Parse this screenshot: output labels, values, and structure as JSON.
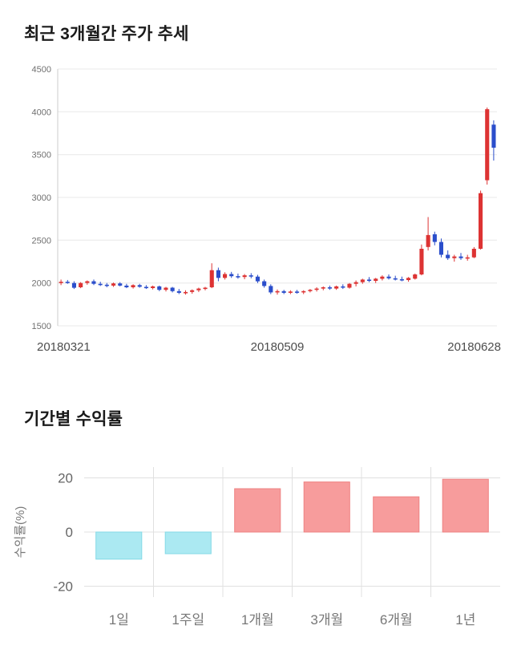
{
  "price_section": {
    "title": "최근 3개월간 주가 추세"
  },
  "returns_section": {
    "title": "기간별 수익률"
  },
  "chart_data": [
    {
      "type": "candlestick",
      "title": "최근 3개월간 주가 추세",
      "ylim": [
        1500,
        4500
      ],
      "y_ticks": [
        1500,
        2000,
        2500,
        3000,
        3500,
        4000,
        4500
      ],
      "x_labels": [
        "20180321",
        "20180509",
        "20180628"
      ],
      "up_color": "#dd3333",
      "down_color": "#2b4ecb",
      "grid_color": "#e8e8e8",
      "axis_color": "#cccccc",
      "tick_label_color": "#707070",
      "x_label_color": "#4d4d4d",
      "candles_format": [
        "date",
        "open",
        "high",
        "low",
        "close"
      ],
      "candles": [
        [
          "20180321",
          2000,
          2040,
          1975,
          2015
        ],
        [
          "20180322",
          2015,
          2035,
          1990,
          2000
        ],
        [
          "20180323",
          2000,
          2020,
          1930,
          1945
        ],
        [
          "20180326",
          1950,
          2010,
          1940,
          2000
        ],
        [
          "20180327",
          2000,
          2030,
          1980,
          2020
        ],
        [
          "20180328",
          2020,
          2040,
          1975,
          1990
        ],
        [
          "20180329",
          1990,
          2015,
          1965,
          1980
        ],
        [
          "20180330",
          1980,
          2000,
          1950,
          1970
        ],
        [
          "20180402",
          1970,
          2005,
          1955,
          1995
        ],
        [
          "20180403",
          1995,
          2010,
          1960,
          1970
        ],
        [
          "20180404",
          1970,
          1990,
          1940,
          1950
        ],
        [
          "20180405",
          1950,
          1985,
          1935,
          1975
        ],
        [
          "20180406",
          1975,
          1990,
          1945,
          1955
        ],
        [
          "20180409",
          1955,
          1975,
          1930,
          1940
        ],
        [
          "20180410",
          1940,
          1970,
          1925,
          1960
        ],
        [
          "20180411",
          1960,
          1970,
          1905,
          1920
        ],
        [
          "20180412",
          1920,
          1955,
          1900,
          1945
        ],
        [
          "20180413",
          1945,
          1955,
          1890,
          1905
        ],
        [
          "20180416",
          1905,
          1930,
          1870,
          1885
        ],
        [
          "20180417",
          1885,
          1915,
          1865,
          1895
        ],
        [
          "20180418",
          1895,
          1925,
          1875,
          1915
        ],
        [
          "20180419",
          1915,
          1945,
          1895,
          1935
        ],
        [
          "20180420",
          1935,
          1955,
          1915,
          1945
        ],
        [
          "20180423",
          1950,
          2230,
          1940,
          2150
        ],
        [
          "20180424",
          2150,
          2180,
          2020,
          2060
        ],
        [
          "20180425",
          2060,
          2125,
          2040,
          2105
        ],
        [
          "20180426",
          2105,
          2130,
          2060,
          2080
        ],
        [
          "20180427",
          2080,
          2110,
          2050,
          2070
        ],
        [
          "20180430",
          2070,
          2105,
          2045,
          2090
        ],
        [
          "20180502",
          2090,
          2115,
          2055,
          2075
        ],
        [
          "20180503",
          2075,
          2095,
          2000,
          2020
        ],
        [
          "20180504",
          2020,
          2040,
          1945,
          1965
        ],
        [
          "20180508",
          1965,
          1985,
          1870,
          1890
        ],
        [
          "20180509",
          1890,
          1925,
          1865,
          1905
        ],
        [
          "20180510",
          1905,
          1920,
          1870,
          1885
        ],
        [
          "20180511",
          1885,
          1915,
          1870,
          1900
        ],
        [
          "20180514",
          1900,
          1920,
          1875,
          1890
        ],
        [
          "20180515",
          1890,
          1915,
          1870,
          1905
        ],
        [
          "20180516",
          1905,
          1930,
          1890,
          1920
        ],
        [
          "20180517",
          1920,
          1950,
          1900,
          1935
        ],
        [
          "20180518",
          1935,
          1960,
          1915,
          1950
        ],
        [
          "20180521",
          1950,
          1970,
          1920,
          1935
        ],
        [
          "20180523",
          1935,
          1970,
          1920,
          1960
        ],
        [
          "20180524",
          1960,
          1985,
          1930,
          1945
        ],
        [
          "20180525",
          1945,
          2000,
          1935,
          1990
        ],
        [
          "20180528",
          1990,
          2030,
          1960,
          2010
        ],
        [
          "20180529",
          2010,
          2050,
          1990,
          2040
        ],
        [
          "20180530",
          2040,
          2070,
          2010,
          2025
        ],
        [
          "20180531",
          2025,
          2060,
          2000,
          2050
        ],
        [
          "20180601",
          2050,
          2090,
          2030,
          2075
        ],
        [
          "20180604",
          2075,
          2100,
          2040,
          2055
        ],
        [
          "20180605",
          2055,
          2085,
          2030,
          2045
        ],
        [
          "20180607",
          2045,
          2075,
          2020,
          2035
        ],
        [
          "20180608",
          2035,
          2070,
          2015,
          2060
        ],
        [
          "20180611",
          2050,
          2110,
          2040,
          2100
        ],
        [
          "20180612",
          2100,
          2450,
          2090,
          2400
        ],
        [
          "20180614",
          2420,
          2770,
          2380,
          2560
        ],
        [
          "20180615",
          2570,
          2600,
          2440,
          2480
        ],
        [
          "20180618",
          2480,
          2520,
          2300,
          2330
        ],
        [
          "20180619",
          2330,
          2380,
          2270,
          2290
        ],
        [
          "20180620",
          2290,
          2330,
          2250,
          2310
        ],
        [
          "20180621",
          2310,
          2350,
          2270,
          2290
        ],
        [
          "20180622",
          2290,
          2330,
          2260,
          2300
        ],
        [
          "20180625",
          2300,
          2420,
          2290,
          2400
        ],
        [
          "20180626",
          2400,
          3080,
          2390,
          3050
        ],
        [
          "20180627",
          3200,
          4050,
          3150,
          4030
        ],
        [
          "20180628",
          3850,
          3900,
          3430,
          3580
        ]
      ]
    },
    {
      "type": "bar",
      "title": "기간별 수익률",
      "ylabel": "수익률(%)",
      "ylim": [
        -24,
        24
      ],
      "y_ticks": [
        20,
        0,
        -20
      ],
      "categories": [
        "1일",
        "1주일",
        "1개월",
        "3개월",
        "6개월",
        "1년"
      ],
      "values": [
        -10,
        -8,
        16,
        18.5,
        13,
        19.5
      ],
      "positive_color": "#f79c9c",
      "positive_border": "#ee8282",
      "negative_color": "#abe9f2",
      "negative_border": "#84d9e6",
      "grid_color": "#e0e0e0",
      "tick_label_color": "#666666",
      "category_label_color": "#777777",
      "ylabel_color": "#777777"
    }
  ]
}
